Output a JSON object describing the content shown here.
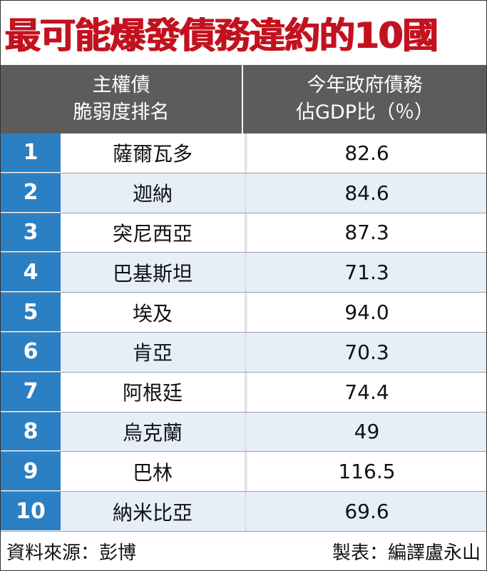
{
  "title": "最可能爆發債務違約的10國",
  "chart_data": {
    "type": "table",
    "columns": [
      {
        "line1": "主權債",
        "line2": "脆弱度排名"
      },
      {
        "line1": "今年政府債務",
        "line2": "佔GDP比（％）"
      }
    ],
    "rows": [
      {
        "rank": "1",
        "country": "薩爾瓦多",
        "value": "82.6"
      },
      {
        "rank": "2",
        "country": "迦納",
        "value": "84.6"
      },
      {
        "rank": "3",
        "country": "突尼西亞",
        "value": "87.3"
      },
      {
        "rank": "4",
        "country": "巴基斯坦",
        "value": "71.3"
      },
      {
        "rank": "5",
        "country": "埃及",
        "value": "94.0"
      },
      {
        "rank": "6",
        "country": "肯亞",
        "value": "70.3"
      },
      {
        "rank": "7",
        "country": "阿根廷",
        "value": "74.4"
      },
      {
        "rank": "8",
        "country": "烏克蘭",
        "value": "49"
      },
      {
        "rank": "9",
        "country": "巴林",
        "value": "116.5"
      },
      {
        "rank": "10",
        "country": "納米比亞",
        "value": "69.6"
      }
    ]
  },
  "footer": {
    "source": "資料來源：彭博",
    "credit": "製表：編譯盧永山"
  },
  "colors": {
    "title": "#c3121f",
    "header_bg": "#5c5c5c",
    "rank_bg": "#2b7fc3",
    "row_alt": "#e6eef8"
  }
}
